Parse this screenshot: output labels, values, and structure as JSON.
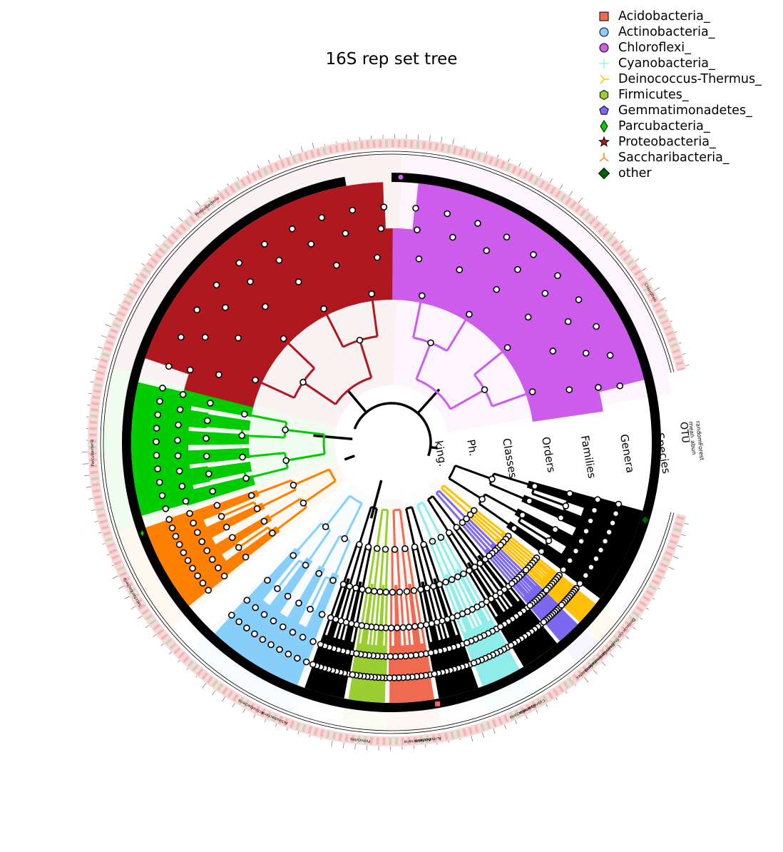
{
  "title": "16S rep set tree",
  "legend": [
    {
      "label": "Acidobacteria_",
      "color": "#ef6a50",
      "marker": "square"
    },
    {
      "label": "Actinobacteria_",
      "color": "#87cefa",
      "marker": "circle"
    },
    {
      "label": "Chloroflexi_",
      "color": "#cd5ced",
      "marker": "circle"
    },
    {
      "label": "Cyanobacteria_",
      "color": "#8eede8",
      "marker": "plus"
    },
    {
      "label": "Deinococcus-Thermus_",
      "color": "#ffc107",
      "marker": "tri-right"
    },
    {
      "label": "Firmicutes_",
      "color": "#9acd32",
      "marker": "hexagon"
    },
    {
      "label": "Gemmatimonadetes_",
      "color": "#7b68ee",
      "marker": "pentagon"
    },
    {
      "label": "Parcubacteria_",
      "color": "#00cc00",
      "marker": "diamond"
    },
    {
      "label": "Proteobacteria_",
      "color": "#b01820",
      "marker": "star"
    },
    {
      "label": "Saccharibacteria_",
      "color": "#ff8000",
      "marker": "tri-down"
    },
    {
      "label": "other",
      "color": "#006400",
      "marker": "diamond"
    }
  ],
  "rank_labels": [
    "king.",
    "Ph.",
    "Classes",
    "Orders",
    "Families",
    "Genera",
    "Species"
  ],
  "ring_labels": [
    "OTU",
    "mean_abun",
    "randomForest"
  ],
  "clade_labels": [
    "Proteobacteria",
    "Chloroflexi",
    "Parcubacteria",
    "Saccharibacteria",
    "Actinobacteria",
    "Actinobacteria",
    "Firmicutes",
    "Acidobacteria",
    "Acidobacteria",
    "Cyanobacteria",
    "Cyanobacteria",
    "Gemmatimonadetes",
    "Gemmatimonadetes",
    "Deinococcus-Thermus"
  ],
  "colors": {
    "proteobacteria": "#b01820",
    "chloroflexi": "#cd5ced",
    "parcubacteria": "#00cc00",
    "saccharibacteria": "#ff8000",
    "actinobacteria": "#87cefa",
    "firmicutes": "#9acd32",
    "acidobacteria": "#ef6a50",
    "cyanobacteria": "#8eede8",
    "deinococcus": "#ffc107",
    "gemmatimonadetes": "#7b68ee",
    "other": "#000000",
    "ring_pink": "#f2b8b8",
    "ring_green": "#9ad39a"
  }
}
